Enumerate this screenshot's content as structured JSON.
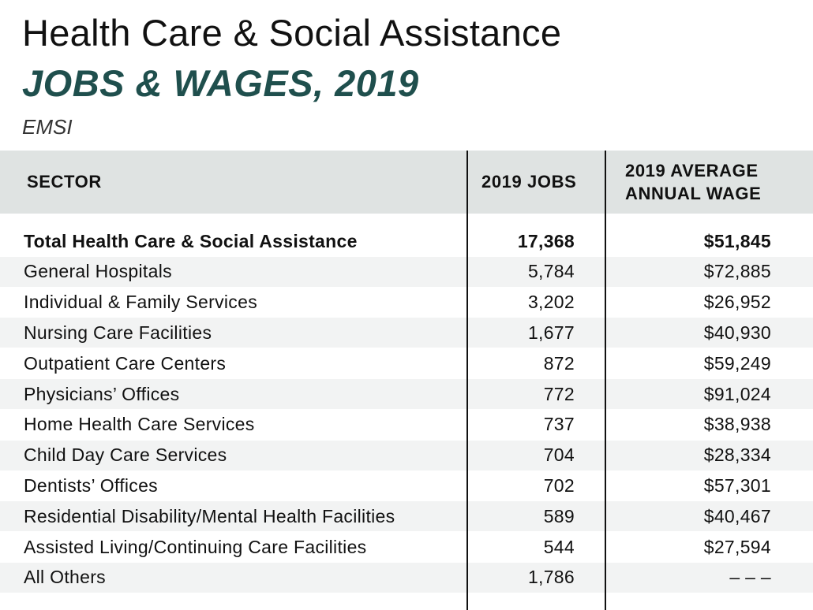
{
  "header": {
    "title": "Health Care & Social Assistance",
    "subtitle": "JOBS & WAGES, 2019",
    "source": "EMSI"
  },
  "chart_data": {
    "type": "table",
    "title": "Health Care & Social Assistance",
    "subtitle": "JOBS & WAGES, 2019",
    "columns": [
      "SECTOR",
      "2019 JOBS",
      "2019 AVERAGE ANNUAL WAGE"
    ],
    "rows": [
      {
        "sector": "Total Health Care & Social Assistance",
        "jobs": "17,368",
        "wage": "$51,845",
        "total": true
      },
      {
        "sector": "General Hospitals",
        "jobs": "5,784",
        "wage": "$72,885"
      },
      {
        "sector": "Individual & Family Services",
        "jobs": "3,202",
        "wage": "$26,952"
      },
      {
        "sector": "Nursing Care Facilities",
        "jobs": "1,677",
        "wage": "$40,930"
      },
      {
        "sector": "Outpatient Care Centers",
        "jobs": "872",
        "wage": "$59,249"
      },
      {
        "sector": "Physicians’ Offices",
        "jobs": "772",
        "wage": "$91,024"
      },
      {
        "sector": "Home Health Care Services",
        "jobs": "737",
        "wage": "$38,938"
      },
      {
        "sector": "Child Day Care Services",
        "jobs": "704",
        "wage": "$28,334"
      },
      {
        "sector": "Dentists’ Offices",
        "jobs": "702",
        "wage": "$57,301"
      },
      {
        "sector": "Residential Disability/Mental Health Facilities",
        "jobs": "589",
        "wage": "$40,467"
      },
      {
        "sector": "Assisted Living/Continuing Care Facilities",
        "jobs": "544",
        "wage": "$27,594"
      },
      {
        "sector": "All Others",
        "jobs": "1,786",
        "wage": "– – –"
      }
    ]
  },
  "colors": {
    "subtitle": "#1f4f4d",
    "header_band": "#dfe3e2",
    "row_shade": "#f2f3f3",
    "text": "#111111"
  }
}
